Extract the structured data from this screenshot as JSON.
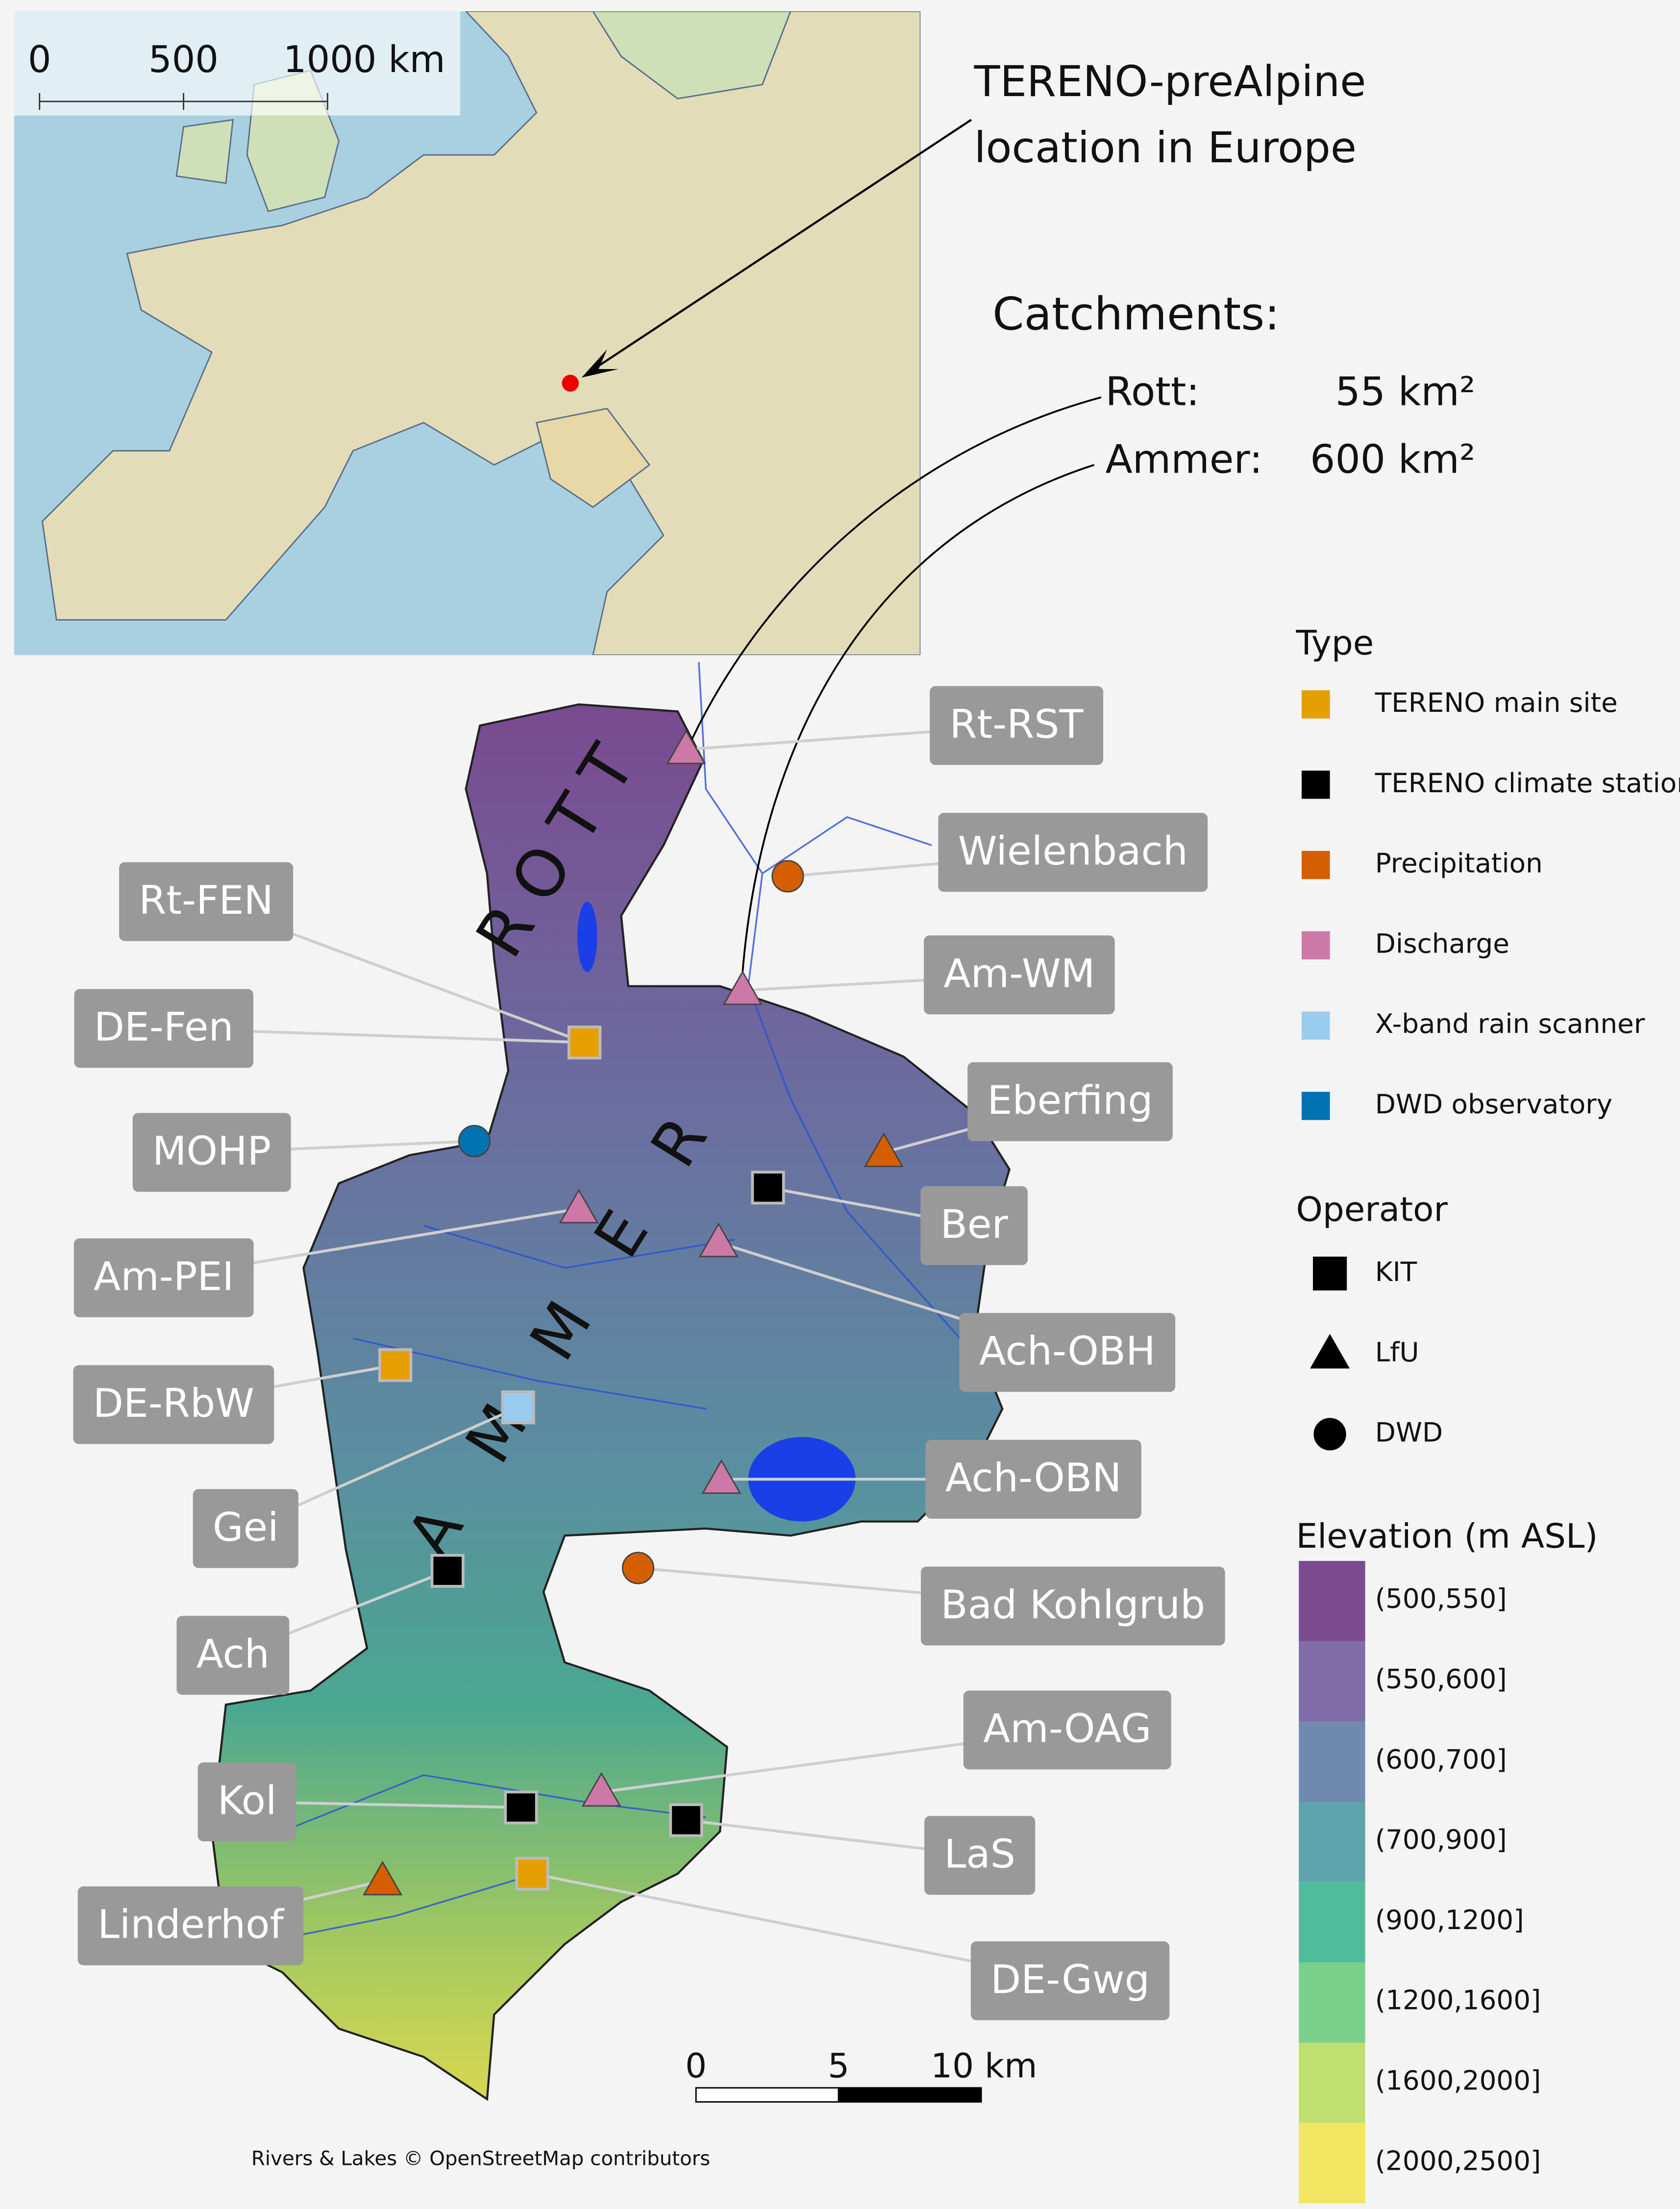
{
  "inset_map": {
    "scale_labels": [
      "0",
      "500",
      "1000 km"
    ]
  },
  "annotation": {
    "lines": [
      "TERENO-preAlpine",
      "location in Europe"
    ]
  },
  "catchments": {
    "title": "Catchments:",
    "items": [
      {
        "name": "Rott:",
        "area": "55 km²"
      },
      {
        "name": "Ammer:",
        "area": "600 km²"
      }
    ]
  },
  "catchment_labels": [
    "ROTT",
    "AMMER"
  ],
  "stations": [
    {
      "label": "Rt-RST",
      "type": "Discharge",
      "operator": "LfU"
    },
    {
      "label": "Wielenbach",
      "type": "Precipitation",
      "operator": "DWD"
    },
    {
      "label": "Rt-FEN",
      "type": "TERENO main site",
      "operator": "KIT"
    },
    {
      "label": "Am-WM",
      "type": "Discharge",
      "operator": "LfU"
    },
    {
      "label": "DE-Fen",
      "type": "TERENO main site",
      "operator": "KIT"
    },
    {
      "label": "Eberfing",
      "type": "Precipitation",
      "operator": "LfU"
    },
    {
      "label": "MOHP",
      "type": "DWD observatory",
      "operator": "DWD"
    },
    {
      "label": "Ber",
      "type": "TERENO climate station",
      "operator": "KIT"
    },
    {
      "label": "Am-PEI",
      "type": "Discharge",
      "operator": "LfU"
    },
    {
      "label": "Ach-OBH",
      "type": "Discharge",
      "operator": "LfU"
    },
    {
      "label": "DE-RbW",
      "type": "TERENO main site",
      "operator": "KIT"
    },
    {
      "label": "Gei",
      "type": "X-band rain scanner",
      "operator": "KIT"
    },
    {
      "label": "Ach-OBN",
      "type": "Discharge",
      "operator": "LfU"
    },
    {
      "label": "Bad Kohlgrub",
      "type": "Precipitation",
      "operator": "DWD"
    },
    {
      "label": "Ach",
      "type": "TERENO climate station",
      "operator": "KIT"
    },
    {
      "label": "Am-OAG",
      "type": "Discharge",
      "operator": "LfU"
    },
    {
      "label": "Kol",
      "type": "TERENO climate station",
      "operator": "KIT"
    },
    {
      "label": "LaS",
      "type": "TERENO climate station",
      "operator": "KIT"
    },
    {
      "label": "Linderhof",
      "type": "Precipitation",
      "operator": "LfU"
    },
    {
      "label": "DE-Gwg",
      "type": "TERENO main site",
      "operator": "KIT"
    }
  ],
  "legend": {
    "type_title": "Type",
    "types": [
      {
        "label": "TERENO main site",
        "color": "#e69f00"
      },
      {
        "label": "TERENO climate station",
        "color": "#000000"
      },
      {
        "label": "Precipitation",
        "color": "#d55e00"
      },
      {
        "label": "Discharge",
        "color": "#cc79a7"
      },
      {
        "label": "X-band rain scanner",
        "color": "#99ccee"
      },
      {
        "label": "DWD observatory",
        "color": "#0072b2"
      }
    ],
    "operator_title": "Operator",
    "operators": [
      "KIT",
      "LfU",
      "DWD"
    ],
    "elevation_title": "Elevation (m ASL)",
    "elevation_classes": [
      {
        "label": "(500,550]",
        "color": "#7b4b8f"
      },
      {
        "label": "(550,600]",
        "color": "#7f6ca8"
      },
      {
        "label": "(600,700]",
        "color": "#6f8aae"
      },
      {
        "label": "(700,900]",
        "color": "#5fa3ac"
      },
      {
        "label": "(900,1200]",
        "color": "#4fbc9c"
      },
      {
        "label": "(1200,1600]",
        "color": "#7ad08a"
      },
      {
        "label": "(1600,2000]",
        "color": "#bfe070"
      },
      {
        "label": "(2000,2500]",
        "color": "#f2e660"
      }
    ]
  },
  "scale_bar": {
    "labels": [
      "0",
      "5",
      "10 km"
    ]
  },
  "attribution": "Rivers & Lakes © OpenStreetMap contributors"
}
